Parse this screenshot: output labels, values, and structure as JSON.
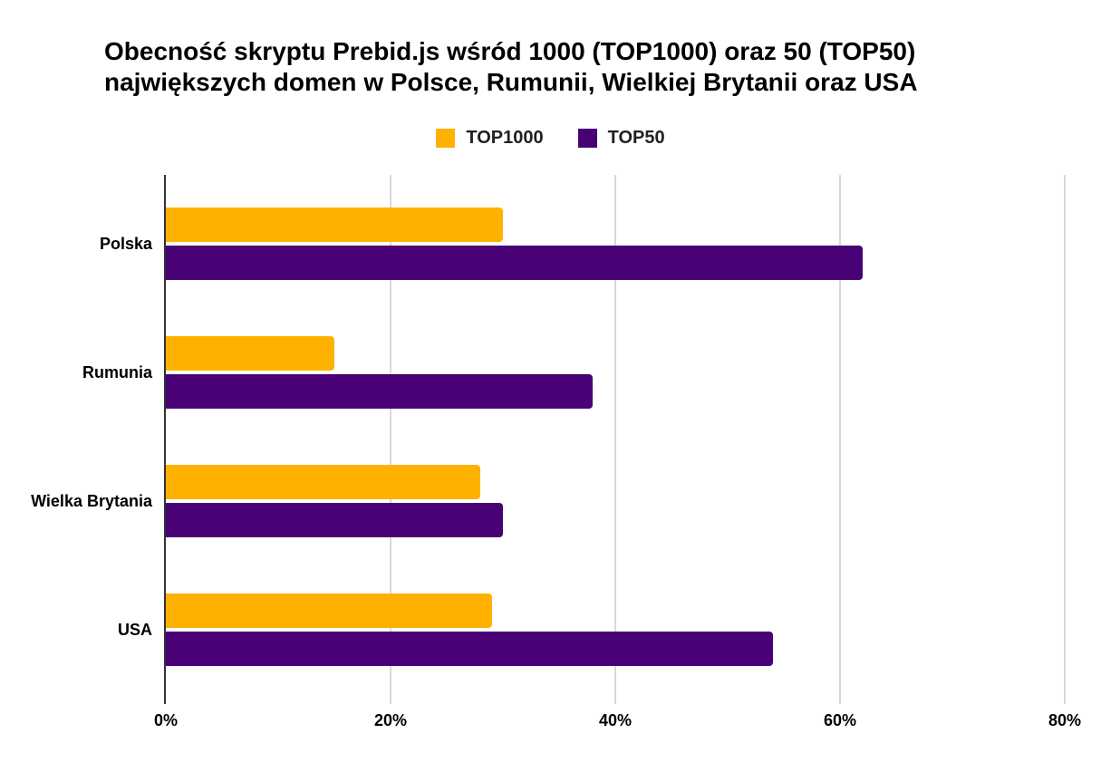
{
  "chart_data": {
    "type": "bar",
    "orientation": "horizontal",
    "title": "Obecność skryptu Prebid.js wśród 1000 (TOP1000) oraz 50 (TOP50) największych domen w Polsce, Rumunii, Wielkiej Brytanii oraz USA",
    "categories": [
      "Polska",
      "Rumunia",
      "Wielka Brytania",
      "USA"
    ],
    "series": [
      {
        "name": "TOP1000",
        "color": "#FFB100",
        "values": [
          30,
          15,
          28,
          29
        ]
      },
      {
        "name": "TOP50",
        "color": "#480275",
        "values": [
          62,
          38,
          30,
          54
        ]
      }
    ],
    "unit": "%",
    "xlim": [
      0,
      80
    ],
    "x_tick_values": [
      0,
      20,
      40,
      60,
      80
    ],
    "x_tick_labels": [
      "0%",
      "20%",
      "40%",
      "60%",
      "80%"
    ],
    "grid": true,
    "legend_position": "top",
    "colors": {
      "grid_line": "#d9d9d9",
      "axis_line": "#333333",
      "title_text": "#000000",
      "label_text": "#000000",
      "legend_text": "#212121",
      "background": "#ffffff"
    }
  }
}
